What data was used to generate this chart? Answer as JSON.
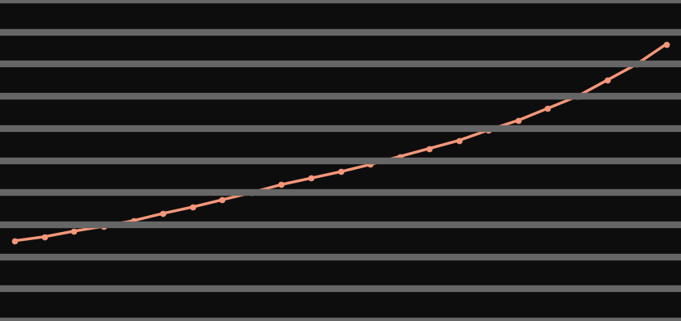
{
  "years": [
    1988,
    1989,
    1990,
    1991,
    1992,
    1993,
    1994,
    1995,
    1996,
    1997,
    1998,
    1999,
    2000,
    2001,
    2002,
    2003,
    2004,
    2005,
    2006,
    2007,
    2008,
    2009,
    2010
  ],
  "values": [
    10.0,
    10.5,
    11.2,
    11.8,
    12.5,
    13.4,
    14.2,
    15.1,
    16.0,
    17.0,
    17.8,
    18.6,
    19.5,
    20.5,
    21.5,
    22.5,
    23.8,
    25.0,
    26.5,
    28.0,
    30.0,
    32.0,
    34.5
  ],
  "line_color": "#F4977A",
  "marker_color": "#F4977A",
  "background_color": "#0d0d0d",
  "grid_color": "#666666",
  "ylim": [
    0,
    40
  ],
  "xlim": [
    1987.5,
    2010.5
  ],
  "n_gridlines": 10,
  "grid_linewidth": 6,
  "line_linewidth": 2.5,
  "marker_size": 5,
  "marker_style": "o"
}
